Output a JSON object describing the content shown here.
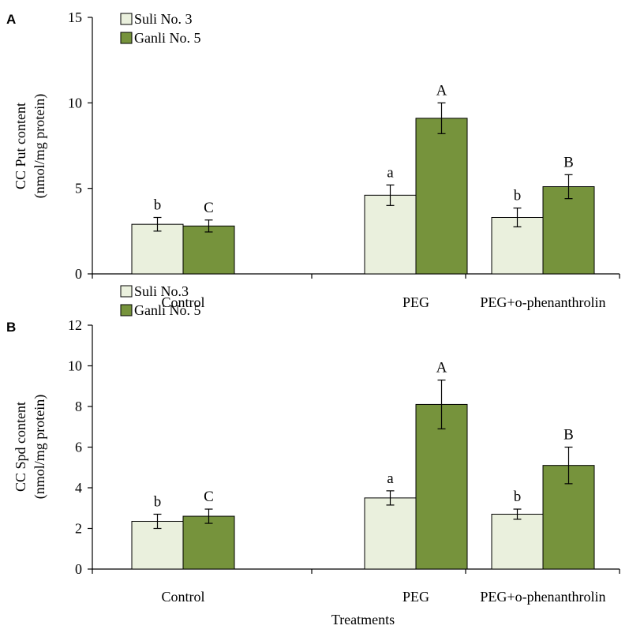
{
  "colors": {
    "series1": "#eaf0dd",
    "series2": "#76933c",
    "stroke": "#000000"
  },
  "chart_data": [
    {
      "type": "bar",
      "panel_label": "A",
      "ylabel": [
        "CC Put content",
        "(nmol/mg protein)"
      ],
      "xlabel": "",
      "ylim": [
        0,
        15
      ],
      "yticks": [
        0,
        5,
        10,
        15
      ],
      "categories": [
        "Control",
        "PEG",
        "PEG+o-phenanthrolin"
      ],
      "legend_position": "top-left",
      "series": [
        {
          "name": "Suli No. 3",
          "values": [
            2.9,
            4.6,
            3.3
          ],
          "errors": [
            0.4,
            0.6,
            0.55
          ],
          "labels": [
            "b",
            "a",
            "b"
          ]
        },
        {
          "name": "Ganli No. 5",
          "values": [
            2.8,
            9.1,
            5.1
          ],
          "errors": [
            0.35,
            0.9,
            0.7
          ],
          "labels": [
            "C",
            "A",
            "B"
          ]
        }
      ]
    },
    {
      "type": "bar",
      "panel_label": "B",
      "ylabel": [
        "CC Spd content",
        "(nmol/mg protein)"
      ],
      "xlabel": "Treatments",
      "ylim": [
        0,
        12
      ],
      "yticks": [
        0,
        2,
        4,
        6,
        8,
        10,
        12
      ],
      "categories": [
        "Control",
        "PEG",
        "PEG+o-phenanthrolin"
      ],
      "legend_position": "top-left",
      "series": [
        {
          "name": "Suli No.3",
          "values": [
            2.35,
            3.5,
            2.7
          ],
          "errors": [
            0.35,
            0.35,
            0.25
          ],
          "labels": [
            "b",
            "a",
            "b"
          ]
        },
        {
          "name": "Ganli No. 5",
          "values": [
            2.6,
            8.1,
            5.1
          ],
          "errors": [
            0.35,
            1.2,
            0.9
          ],
          "labels": [
            "C",
            "A",
            "B"
          ]
        }
      ]
    }
  ]
}
